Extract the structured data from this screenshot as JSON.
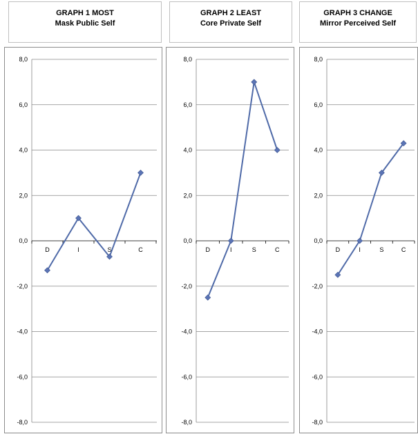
{
  "panels": [
    {
      "title_line1": "GRAPH  1  MOST",
      "title_line2": "Mask Public Self"
    },
    {
      "title_line1": "GRAPH  2  LEAST",
      "title_line2": "Core Private Self"
    },
    {
      "title_line1": "GRAPH  3  CHANGE",
      "title_line2": "Mirror Perceived Self"
    }
  ],
  "colors": {
    "series": "#4F6AA8",
    "marker": "#5B74B5",
    "grid": "#868686",
    "axis": "#000000"
  },
  "chart_data": [
    {
      "type": "line",
      "title": "GRAPH  1  MOST Mask Public Self",
      "categories": [
        "D",
        "I",
        "S",
        "C"
      ],
      "values": [
        -1.3,
        1.0,
        -0.7,
        3.0
      ],
      "ylim": [
        -8,
        8
      ],
      "yticks": [
        "8,0",
        "6,0",
        "4,0",
        "2,0",
        "0,0",
        "-2,0",
        "-4,0",
        "-6,0",
        "-8,0"
      ],
      "grid": true
    },
    {
      "type": "line",
      "title": "GRAPH  2  LEAST Core Private Self",
      "categories": [
        "D",
        "I",
        "S",
        "C"
      ],
      "values": [
        -2.5,
        0.0,
        7.0,
        4.0
      ],
      "ylim": [
        -8,
        8
      ],
      "yticks": [
        "8,0",
        "6,0",
        "4,0",
        "2,0",
        "0,0",
        "-2,0",
        "-4,0",
        "-6,0",
        "-8,0"
      ],
      "grid": true
    },
    {
      "type": "line",
      "title": "GRAPH  3  CHANGE Mirror Perceived Self",
      "categories": [
        "D",
        "I",
        "S",
        "C"
      ],
      "values": [
        -1.5,
        0.0,
        3.0,
        4.3
      ],
      "ylim": [
        -8,
        8
      ],
      "yticks": [
        "8,0",
        "6,0",
        "4,0",
        "2,0",
        "0,0",
        "-2,0",
        "-4,0",
        "-6,0",
        "-8,0"
      ],
      "grid": true
    }
  ]
}
